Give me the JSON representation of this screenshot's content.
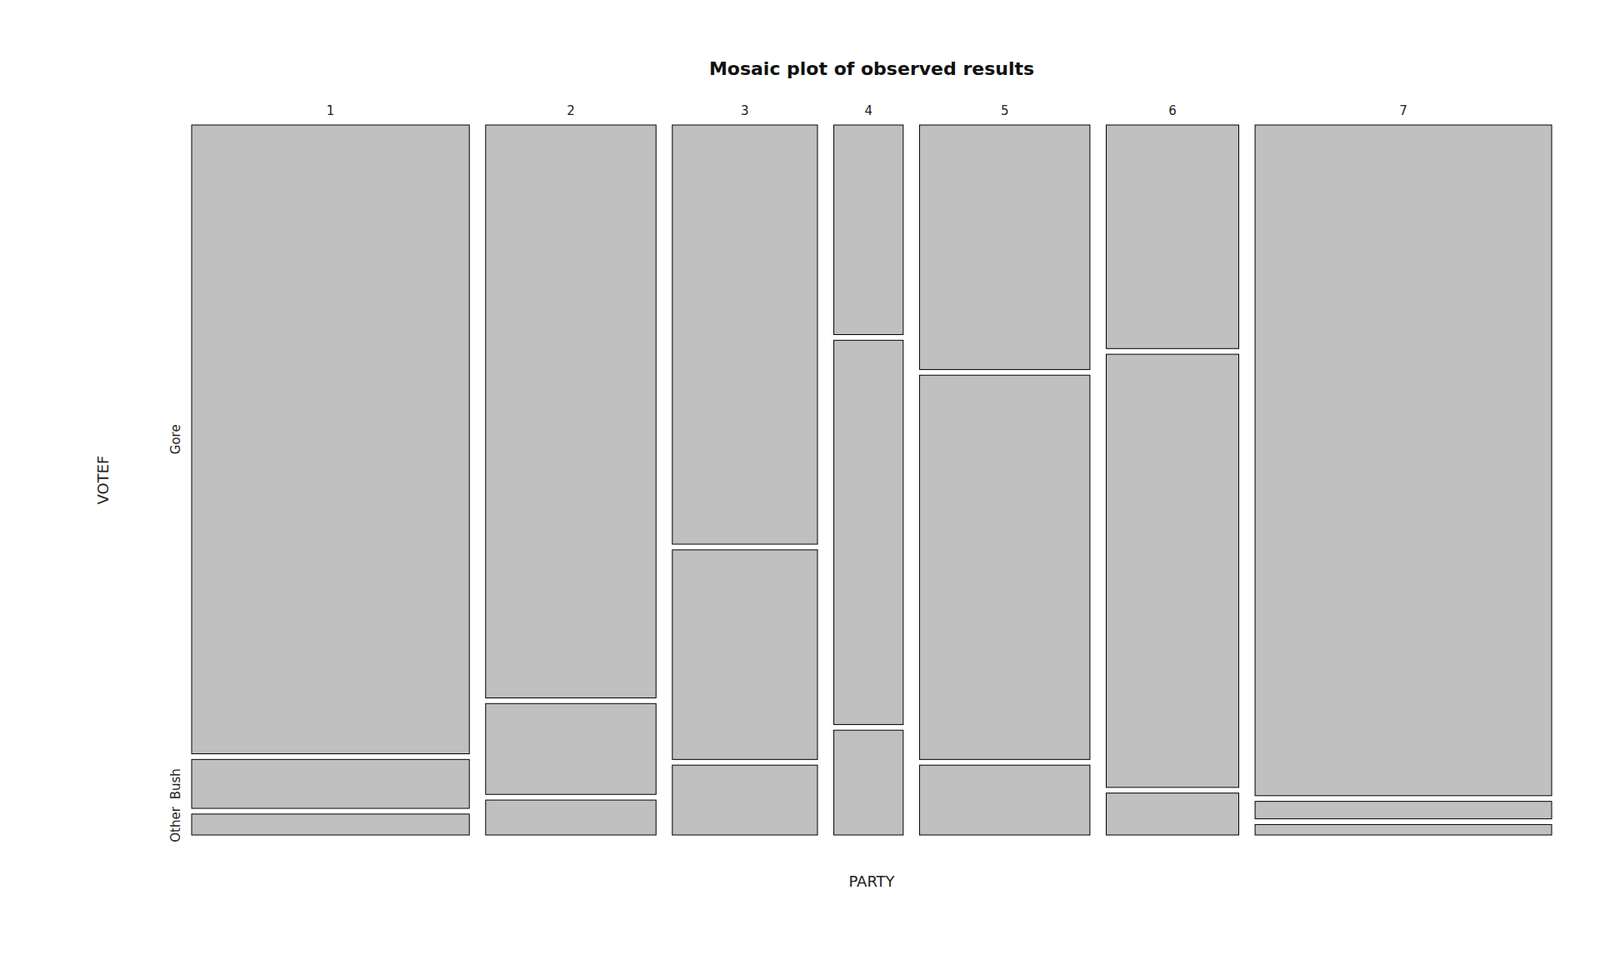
{
  "chart_data": {
    "type": "mosaic",
    "title": "Mosaic plot of observed results",
    "x_label": "PARTY",
    "y_label": "VOTEF",
    "categories": [
      "1",
      "2",
      "3",
      "4",
      "5",
      "6",
      "7"
    ],
    "widths": [
      0.22,
      0.135,
      0.115,
      0.055,
      0.135,
      0.105,
      0.235
    ],
    "series": [
      {
        "name": "Gore",
        "values": [
          0.9,
          0.82,
          0.6,
          0.3,
          0.35,
          0.32,
          0.96
        ]
      },
      {
        "name": "Bush",
        "values": [
          0.07,
          0.13,
          0.3,
          0.55,
          0.55,
          0.62,
          0.025
        ]
      },
      {
        "name": "Other",
        "values": [
          0.03,
          0.05,
          0.1,
          0.15,
          0.1,
          0.06,
          0.015
        ]
      }
    ],
    "color": "#c0c0c0",
    "grid": false
  }
}
